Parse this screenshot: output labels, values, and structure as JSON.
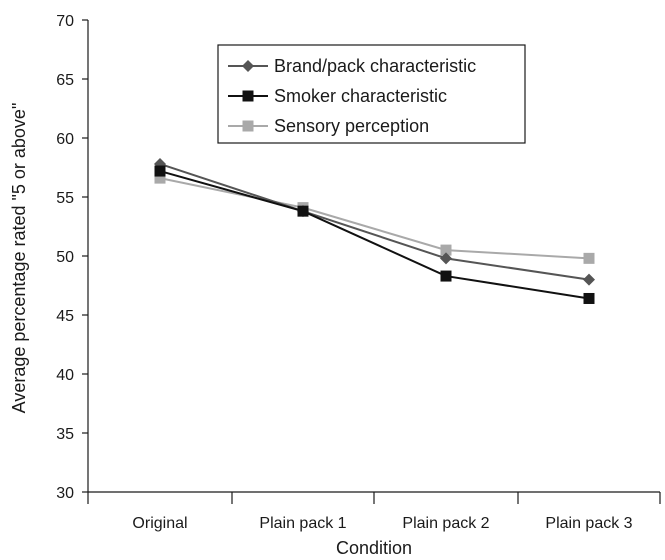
{
  "chart_data": {
    "type": "line",
    "title": "",
    "xlabel": "Condition",
    "ylabel": "Average percentage rated \"5 or above\"",
    "categories": [
      "Original",
      "Plain pack 1",
      "Plain pack 2",
      "Plain pack 3"
    ],
    "ylim": [
      30,
      70
    ],
    "yticks": [
      30,
      35,
      40,
      45,
      50,
      55,
      60,
      65,
      70
    ],
    "grid": false,
    "legend_position": "top-right",
    "series": [
      {
        "name": "Brand/pack characteristic",
        "marker": "diamond",
        "color": "#555555",
        "values": [
          57.8,
          53.8,
          49.8,
          48.0
        ]
      },
      {
        "name": "Smoker characteristic",
        "marker": "square",
        "color": "#111111",
        "values": [
          57.2,
          53.8,
          48.3,
          46.4
        ]
      },
      {
        "name": "Sensory perception",
        "marker": "square",
        "color": "#a9a9a9",
        "values": [
          56.6,
          54.1,
          50.5,
          49.8
        ]
      }
    ]
  }
}
